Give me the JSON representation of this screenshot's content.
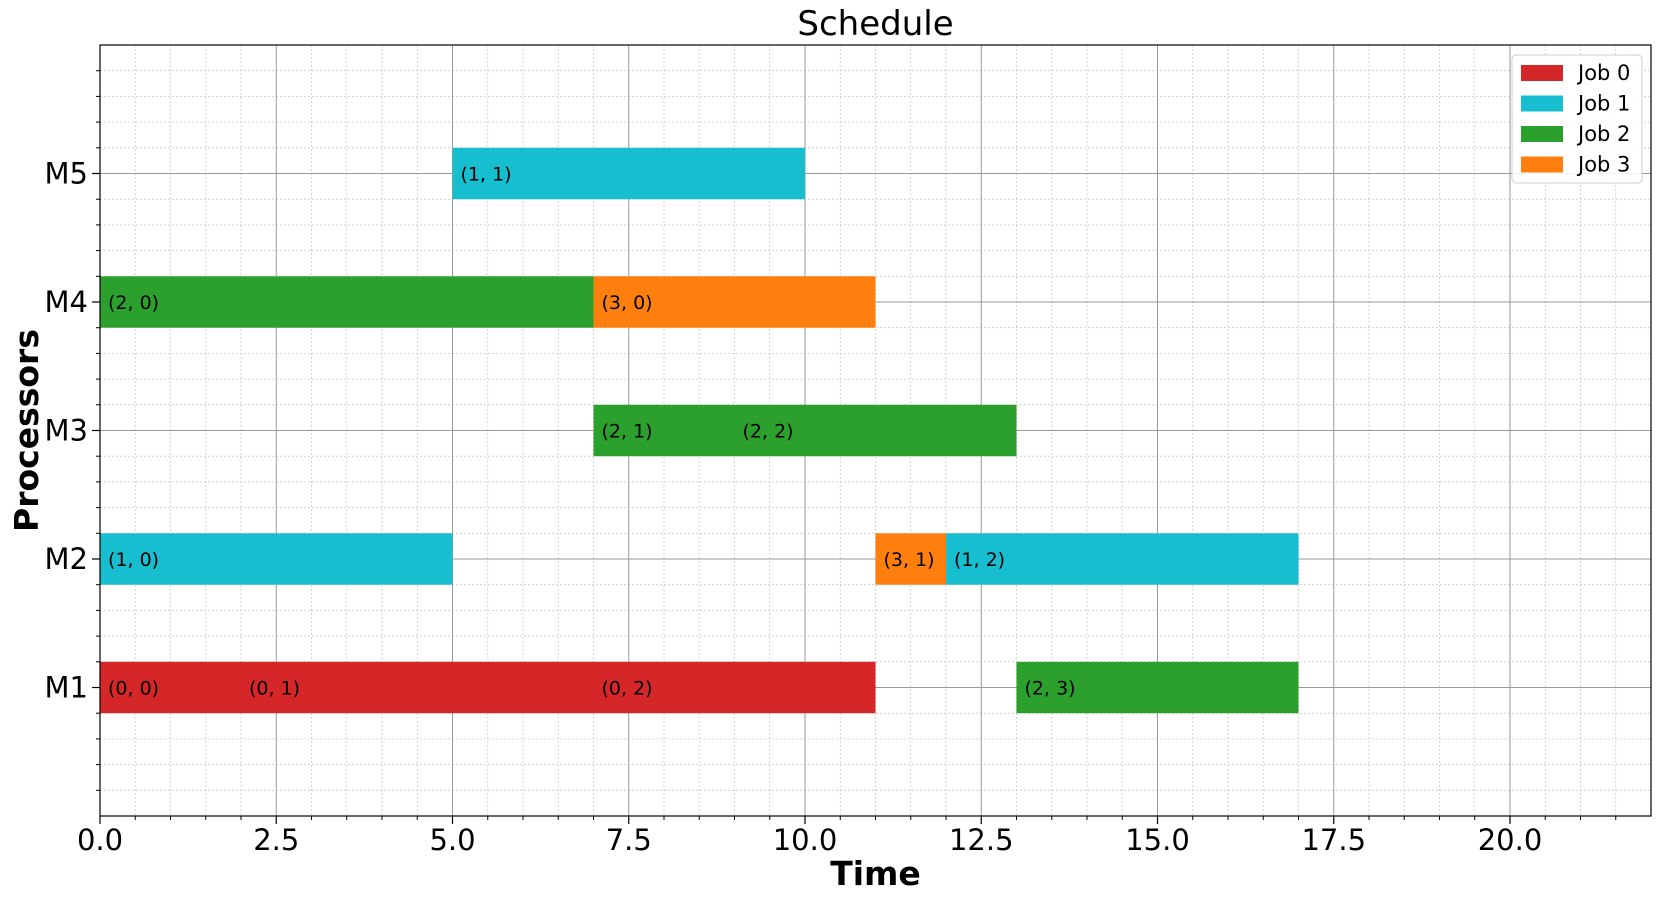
{
  "chart_data": {
    "type": "bar",
    "orientation": "horizontal",
    "title": "Schedule",
    "xlabel": "Time",
    "ylabel": "Processors",
    "xlim": [
      0,
      22
    ],
    "xticks": [
      "0.0",
      "2.5",
      "5.0",
      "7.5",
      "10.0",
      "12.5",
      "15.0",
      "17.5",
      "20.0"
    ],
    "categories": [
      "M1",
      "M2",
      "M3",
      "M4",
      "M5"
    ],
    "grid": true,
    "legend_position": "top-right",
    "series": [
      {
        "name": "Job 0",
        "color": "#d62728"
      },
      {
        "name": "Job 1",
        "color": "#17becf"
      },
      {
        "name": "Job 2",
        "color": "#2ca02c"
      },
      {
        "name": "Job 3",
        "color": "#ff7f0e"
      }
    ],
    "tasks": [
      {
        "processor": "M1",
        "job": 0,
        "start": 0,
        "end": 2,
        "label": "(0, 0)"
      },
      {
        "processor": "M1",
        "job": 0,
        "start": 2,
        "end": 7,
        "label": "(0, 1)"
      },
      {
        "processor": "M1",
        "job": 0,
        "start": 7,
        "end": 11,
        "label": "(0, 2)"
      },
      {
        "processor": "M1",
        "job": 2,
        "start": 13,
        "end": 17,
        "label": "(2, 3)"
      },
      {
        "processor": "M2",
        "job": 1,
        "start": 0,
        "end": 5,
        "label": "(1, 0)"
      },
      {
        "processor": "M2",
        "job": 3,
        "start": 11,
        "end": 12,
        "label": "(3, 1)"
      },
      {
        "processor": "M2",
        "job": 1,
        "start": 12,
        "end": 17,
        "label": "(1, 2)"
      },
      {
        "processor": "M3",
        "job": 2,
        "start": 7,
        "end": 9,
        "label": "(2, 1)"
      },
      {
        "processor": "M3",
        "job": 2,
        "start": 9,
        "end": 13,
        "label": "(2, 2)"
      },
      {
        "processor": "M4",
        "job": 2,
        "start": 0,
        "end": 7,
        "label": "(2, 0)"
      },
      {
        "processor": "M4",
        "job": 3,
        "start": 7,
        "end": 11,
        "label": "(3, 0)"
      },
      {
        "processor": "M5",
        "job": 1,
        "start": 5,
        "end": 10,
        "label": "(1, 1)"
      }
    ]
  }
}
